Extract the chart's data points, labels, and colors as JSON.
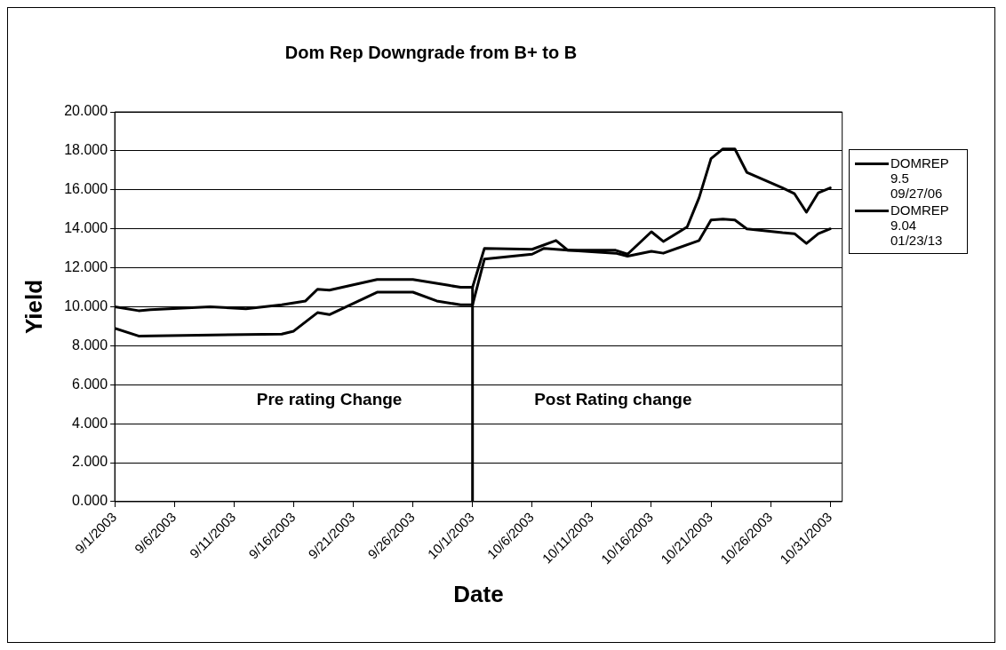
{
  "chart_data": {
    "type": "line",
    "title": "Dom Rep Downgrade from B+ to B",
    "xlabel": "Date",
    "ylabel": "Yield",
    "xlim": [
      "2003-09-01",
      "2003-11-01"
    ],
    "xticks": [
      {
        "value": "2003-09-01",
        "label": "9/1/2003"
      },
      {
        "value": "2003-09-06",
        "label": "9/6/2003"
      },
      {
        "value": "2003-09-11",
        "label": "9/11/2003"
      },
      {
        "value": "2003-09-16",
        "label": "9/16/2003"
      },
      {
        "value": "2003-09-21",
        "label": "9/21/2003"
      },
      {
        "value": "2003-09-26",
        "label": "9/26/2003"
      },
      {
        "value": "2003-10-01",
        "label": "10/1/2003"
      },
      {
        "value": "2003-10-06",
        "label": "10/6/2003"
      },
      {
        "value": "2003-10-11",
        "label": "10/11/2003"
      },
      {
        "value": "2003-10-16",
        "label": "10/16/2003"
      },
      {
        "value": "2003-10-21",
        "label": "10/21/2003"
      },
      {
        "value": "2003-10-26",
        "label": "10/26/2003"
      },
      {
        "value": "2003-10-31",
        "label": "10/31/2003"
      }
    ],
    "ylim": [
      0,
      20
    ],
    "yticks": [
      {
        "value": 0,
        "label": "0.000"
      },
      {
        "value": 2,
        "label": "2.000"
      },
      {
        "value": 4,
        "label": "4.000"
      },
      {
        "value": 6,
        "label": "6.000"
      },
      {
        "value": 8,
        "label": "8.000"
      },
      {
        "value": 10,
        "label": "10.000"
      },
      {
        "value": 12,
        "label": "12.000"
      },
      {
        "value": 14,
        "label": "14.000"
      },
      {
        "value": 16,
        "label": "16.000"
      },
      {
        "value": 18,
        "label": "18.000"
      },
      {
        "value": 20,
        "label": "20.000"
      }
    ],
    "grid": "y",
    "legend": "right",
    "marker": "none",
    "line_style": "solid",
    "series": [
      {
        "name": "DOMREP 9.5 09/27/06",
        "color": "#000000",
        "x": [
          "2003-09-01",
          "2003-09-03",
          "2003-09-04",
          "2003-09-09",
          "2003-09-12",
          "2003-09-15",
          "2003-09-17",
          "2003-09-18",
          "2003-09-19",
          "2003-09-23",
          "2003-09-26",
          "2003-09-29",
          "2003-09-30",
          "2003-10-01",
          "2003-10-02",
          "2003-10-06",
          "2003-10-08",
          "2003-10-09",
          "2003-10-13",
          "2003-10-14",
          "2003-10-16",
          "2003-10-17",
          "2003-10-19",
          "2003-10-20",
          "2003-10-21",
          "2003-10-22",
          "2003-10-23",
          "2003-10-24",
          "2003-10-27",
          "2003-10-28",
          "2003-10-29",
          "2003-10-30",
          "2003-10-31"
        ],
        "values": [
          10.0,
          9.8,
          9.85,
          10.0,
          9.9,
          10.1,
          10.3,
          10.9,
          10.85,
          11.4,
          11.4,
          11.1,
          11.0,
          11.0,
          13.0,
          12.95,
          13.4,
          12.9,
          12.9,
          12.7,
          13.85,
          13.35,
          14.1,
          15.6,
          17.6,
          18.1,
          18.1,
          16.9,
          16.1,
          15.8,
          14.85,
          15.85,
          16.1
        ]
      },
      {
        "name": "DOMREP 9.04 01/23/13",
        "color": "#000000",
        "x": [
          "2003-09-01",
          "2003-09-03",
          "2003-09-15",
          "2003-09-16",
          "2003-09-18",
          "2003-09-19",
          "2003-09-23",
          "2003-09-26",
          "2003-09-28",
          "2003-09-30",
          "2003-10-01",
          "2003-10-02",
          "2003-10-06",
          "2003-10-07",
          "2003-10-09",
          "2003-10-13",
          "2003-10-14",
          "2003-10-16",
          "2003-10-17",
          "2003-10-20",
          "2003-10-21",
          "2003-10-22",
          "2003-10-23",
          "2003-10-24",
          "2003-10-27",
          "2003-10-28",
          "2003-10-29",
          "2003-10-30",
          "2003-10-31"
        ],
        "values": [
          8.9,
          8.5,
          8.6,
          8.75,
          9.7,
          9.6,
          10.75,
          10.75,
          10.3,
          10.1,
          10.1,
          12.45,
          12.7,
          13.0,
          12.9,
          12.75,
          12.6,
          12.85,
          12.75,
          13.4,
          14.45,
          14.5,
          14.45,
          14.0,
          13.8,
          13.75,
          13.25,
          13.75,
          14.0
        ]
      },
      {
        "color": "#000000",
        "x": [
          "2003-10-01",
          "2003-10-01"
        ],
        "values": [
          0,
          11.0
        ]
      }
    ],
    "annotations": [
      "Pre rating Change",
      "Post Rating change"
    ]
  }
}
